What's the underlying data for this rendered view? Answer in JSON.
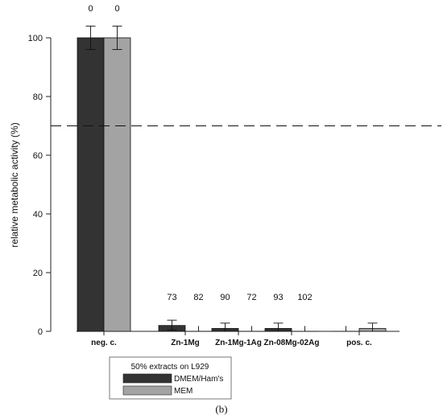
{
  "chart_data": {
    "type": "bar",
    "title": "",
    "xlabel": "",
    "ylabel": "relative metabolic activity (%)",
    "ylim": [
      0,
      100
    ],
    "yticks": [
      0,
      20,
      40,
      60,
      80,
      100
    ],
    "categories": [
      "neg. c.",
      "Zn-1Mg",
      "Zn-1Mg-1Ag",
      "Zn-08Mg-02Ag",
      "pos. c."
    ],
    "threshold": 70,
    "threshold_style": "dashed",
    "grid": false,
    "legend": {
      "title": "50% extracts on L929",
      "placement": "bottom"
    },
    "series": [
      {
        "name": "DMEM/Ham's",
        "color": "#333333",
        "values": [
          100,
          2,
          1,
          1,
          0
        ],
        "errors": [
          4,
          1.5,
          1.5,
          1.2,
          0
        ],
        "labels": [
          "0",
          "73",
          "90",
          "93",
          ""
        ]
      },
      {
        "name": "MEM",
        "color": "#a3a3a3",
        "values": [
          100,
          0,
          0,
          0,
          1
        ],
        "errors": [
          4,
          0,
          0,
          0,
          1.5
        ],
        "labels": [
          "0",
          "82",
          "72",
          "102",
          ""
        ]
      }
    ]
  },
  "caption": "(b)"
}
